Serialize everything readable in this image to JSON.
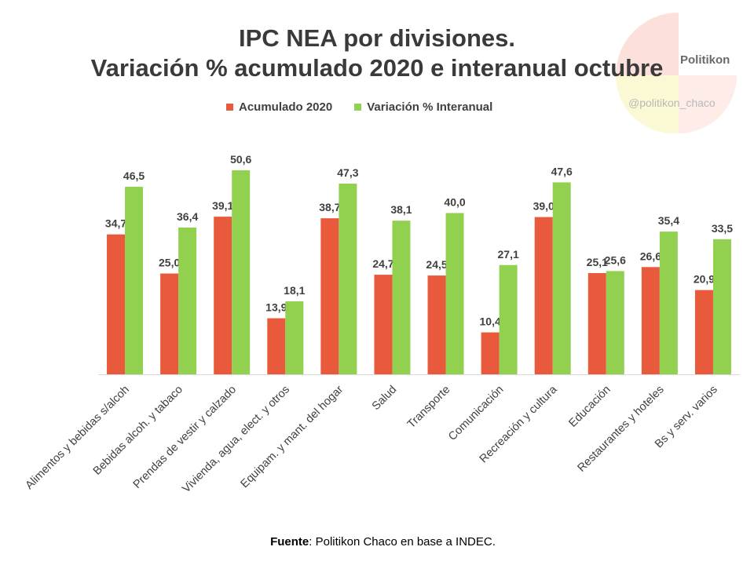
{
  "title": {
    "line1": "IPC NEA por divisiones.",
    "line2": "Variación % acumulado 2020 e interanual octubre"
  },
  "watermark": {
    "brand": "Politikon",
    "handle": "@politikon_chaco"
  },
  "source": {
    "label": "Fuente",
    "text": ": Politikon Chaco en base a INDEC."
  },
  "colors": {
    "series1": "#e85a3b",
    "series2": "#92d050",
    "axis": "#d9d9d9",
    "label": "#404040"
  },
  "chart_data": {
    "type": "bar",
    "title": "IPC NEA por divisiones. Variación % acumulado 2020 e interanual octubre",
    "categories": [
      "Alimentos y bebidas s/alcoh",
      "Bebidas alcoh. y tabaco",
      "Prendas de vestir y calzado",
      "Vivienda, agua, elect. y otros",
      "Equipam. y mant. del hogar",
      "Salud",
      "Transporte",
      "Comunicación",
      "Recreación y cultura",
      "Educación",
      "Restaurantes y hoteles",
      "Bs y serv. varios"
    ],
    "series": [
      {
        "name": "Acumulado 2020",
        "values": [
          34.7,
          25.0,
          39.1,
          13.9,
          38.7,
          24.7,
          24.5,
          10.4,
          39.0,
          25.1,
          26.6,
          20.9
        ],
        "labels": [
          "34,7",
          "25,0",
          "39,1",
          "13,9",
          "38,7",
          "24,7",
          "24,5",
          "10,4",
          "39,0",
          "25,1",
          "26,6",
          "20,9"
        ]
      },
      {
        "name": "Variación % Interanual",
        "values": [
          46.5,
          36.4,
          50.6,
          18.1,
          47.3,
          38.1,
          40.0,
          27.1,
          47.6,
          25.6,
          35.4,
          33.5
        ],
        "labels": [
          "46,5",
          "36,4",
          "50,6",
          "18,1",
          "47,3",
          "38,1",
          "40,0",
          "27,1",
          "47,6",
          "25,6",
          "35,4",
          "33,5"
        ]
      }
    ],
    "ylim": [
      0,
      50.6
    ],
    "grid": false,
    "legend_position": "top"
  }
}
